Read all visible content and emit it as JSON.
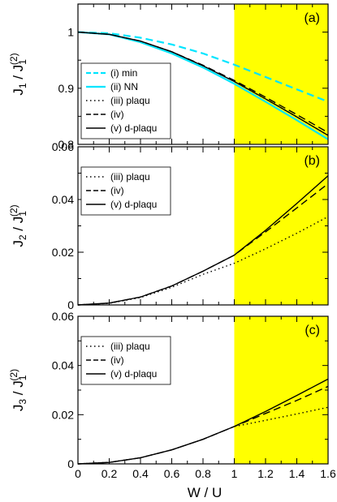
{
  "figure": {
    "xlabel": "W / U"
  },
  "colors": {
    "shade": "#ffff00",
    "cyan": "#00e5ff",
    "black": "#000000"
  },
  "chart_data": [
    {
      "type": "line",
      "panel_label": "(a)",
      "ylabel": {
        "base": "J",
        "sub": "1",
        "sep": " / ",
        "base2": "J",
        "sub2": "1",
        "sup2": "(2)"
      },
      "xlabel": "W / U",
      "xlim": [
        0,
        1.6
      ],
      "ylim": [
        0.8,
        1.05
      ],
      "xticks": [
        "0",
        "0.2",
        "0.4",
        "0.6",
        "0.8",
        "1",
        "1.2",
        "1.4",
        "1.6"
      ],
      "yticks": [
        0.8,
        0.9,
        1
      ],
      "ytick_labels": [
        "0.8",
        "0.9",
        "1"
      ],
      "shaded_region": [
        1.0,
        1.6
      ],
      "legend_position": "bottom-left",
      "x": [
        0,
        0.2,
        0.4,
        0.6,
        0.8,
        1.0,
        1.2,
        1.4,
        1.6
      ],
      "series": [
        {
          "name": "(i) min",
          "color": "#00e5ff",
          "dash": "dashed",
          "values": [
            1.0,
            0.998,
            0.99,
            0.978,
            0.962,
            0.942,
            0.92,
            0.898,
            0.876
          ]
        },
        {
          "name": "(ii) NN",
          "color": "#00e5ff",
          "dash": "solid",
          "values": [
            1.0,
            0.996,
            0.982,
            0.962,
            0.937,
            0.908,
            0.876,
            0.843,
            0.809
          ]
        },
        {
          "name": "(iii) plaqu",
          "color": "#000000",
          "dash": "dotted",
          "values": [
            1.0,
            0.996,
            0.984,
            0.965,
            0.94,
            0.912,
            0.881,
            0.849,
            0.816
          ]
        },
        {
          "name": "(iv)",
          "color": "#000000",
          "dash": "dashed",
          "values": [
            1.0,
            0.996,
            0.984,
            0.965,
            0.941,
            0.914,
            0.884,
            0.853,
            0.821
          ]
        },
        {
          "name": "(v) d-plaqu",
          "color": "#000000",
          "dash": "solid",
          "values": [
            1.0,
            0.996,
            0.984,
            0.965,
            0.94,
            0.912,
            0.881,
            0.849,
            0.816
          ]
        }
      ]
    },
    {
      "type": "line",
      "panel_label": "(b)",
      "ylabel": {
        "base": "J",
        "sub": "2",
        "sep": " / ",
        "base2": "J",
        "sub2": "1",
        "sup2": "(2)"
      },
      "xlabel": "W / U",
      "xlim": [
        0,
        1.6
      ],
      "ylim": [
        0,
        0.06
      ],
      "xticks": [
        "0",
        "0.2",
        "0.4",
        "0.6",
        "0.8",
        "1",
        "1.2",
        "1.4",
        "1.6"
      ],
      "yticks": [
        0,
        0.02,
        0.04,
        0.06
      ],
      "ytick_labels": [
        "0",
        "0.02",
        "0.04",
        "0.06"
      ],
      "shaded_region": [
        1.0,
        1.6
      ],
      "legend_position": "top-left",
      "x": [
        0,
        0.2,
        0.4,
        0.6,
        0.8,
        1.0,
        1.2,
        1.4,
        1.6
      ],
      "series": [
        {
          "name": "(iii) plaqu",
          "color": "#000000",
          "dash": "dotted",
          "values": [
            0,
            0.0006,
            0.0028,
            0.0067,
            0.0116,
            0.0158,
            0.0213,
            0.0272,
            0.0335
          ]
        },
        {
          "name": "(iv)",
          "color": "#000000",
          "dash": "dashed",
          "values": [
            0,
            0.0007,
            0.003,
            0.0072,
            0.0128,
            0.0189,
            0.0277,
            0.0368,
            0.046
          ]
        },
        {
          "name": "(v) d-plaqu",
          "color": "#000000",
          "dash": "solid",
          "values": [
            0,
            0.0007,
            0.003,
            0.0072,
            0.0128,
            0.0189,
            0.0283,
            0.0385,
            0.049
          ]
        }
      ]
    },
    {
      "type": "line",
      "panel_label": "(c)",
      "ylabel": {
        "base": "J",
        "sub": "3",
        "sep": " / ",
        "base2": "J",
        "sub2": "1",
        "sup2": "(2)"
      },
      "xlabel": "W / U",
      "xlim": [
        0,
        1.6
      ],
      "ylim": [
        0,
        0.06
      ],
      "xticks": [
        "0",
        "0.2",
        "0.4",
        "0.6",
        "0.8",
        "1",
        "1.2",
        "1.4",
        "1.6"
      ],
      "yticks": [
        0,
        0.02,
        0.04,
        0.06
      ],
      "ytick_labels": [
        "0",
        "0.02",
        "0.04",
        "0.06"
      ],
      "shaded_region": [
        1.0,
        1.6
      ],
      "legend_position": "top-left",
      "x": [
        0,
        0.2,
        0.4,
        0.6,
        0.8,
        1.0,
        1.2,
        1.4,
        1.6
      ],
      "series": [
        {
          "name": "(iii) plaqu",
          "color": "#000000",
          "dash": "dotted",
          "values": [
            0,
            0.0006,
            0.0025,
            0.0057,
            0.01,
            0.0152,
            0.0177,
            0.0203,
            0.023
          ]
        },
        {
          "name": "(iv)",
          "color": "#000000",
          "dash": "dashed",
          "values": [
            0,
            0.0006,
            0.0025,
            0.0057,
            0.01,
            0.0152,
            0.0205,
            0.0258,
            0.0315
          ]
        },
        {
          "name": "(v) d-plaqu",
          "color": "#000000",
          "dash": "solid",
          "values": [
            0,
            0.0006,
            0.0025,
            0.0057,
            0.01,
            0.0152,
            0.0213,
            0.0278,
            0.0345
          ]
        }
      ]
    }
  ]
}
